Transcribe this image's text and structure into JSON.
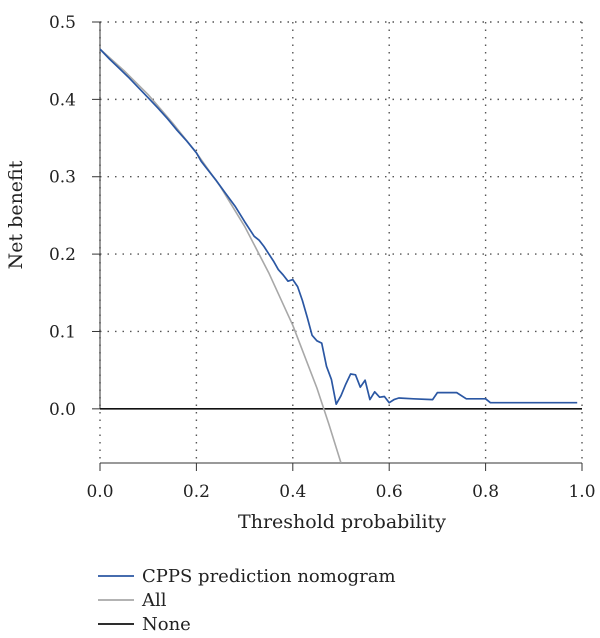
{
  "chart_data": {
    "type": "line",
    "title": "",
    "xlabel": "Threshold probability",
    "ylabel": "Net benefit",
    "xlim": [
      0,
      1
    ],
    "ylim": [
      -0.07,
      0.5
    ],
    "x_ticks": [
      0.0,
      0.2,
      0.4,
      0.6,
      0.8,
      1.0
    ],
    "x_tick_labels": [
      "0.0",
      "0.2",
      "0.4",
      "0.6",
      "0.8",
      "1.0"
    ],
    "y_ticks": [
      0.0,
      0.1,
      0.2,
      0.3,
      0.4,
      0.5
    ],
    "y_tick_labels": [
      "0.0",
      "0.1",
      "0.2",
      "0.3",
      "0.4",
      "0.5"
    ],
    "grid": true,
    "legend_position": "bottom-left",
    "series": [
      {
        "name": "CPPS prediction nomogram",
        "color": "#2b57a3",
        "x": [
          0.0,
          0.02,
          0.04,
          0.06,
          0.08,
          0.1,
          0.12,
          0.14,
          0.16,
          0.18,
          0.2,
          0.21,
          0.22,
          0.24,
          0.26,
          0.28,
          0.3,
          0.32,
          0.33,
          0.34,
          0.36,
          0.37,
          0.38,
          0.39,
          0.4,
          0.41,
          0.42,
          0.43,
          0.44,
          0.45,
          0.46,
          0.47,
          0.48,
          0.49,
          0.5,
          0.51,
          0.52,
          0.53,
          0.54,
          0.55,
          0.56,
          0.57,
          0.58,
          0.59,
          0.6,
          0.61,
          0.62,
          0.65,
          0.69,
          0.7,
          0.74,
          0.76,
          0.8,
          0.81,
          0.85,
          0.9,
          0.99
        ],
        "y": [
          0.465,
          0.452,
          0.44,
          0.428,
          0.415,
          0.402,
          0.389,
          0.375,
          0.36,
          0.346,
          0.331,
          0.32,
          0.312,
          0.296,
          0.279,
          0.262,
          0.242,
          0.223,
          0.218,
          0.21,
          0.191,
          0.18,
          0.173,
          0.165,
          0.167,
          0.158,
          0.14,
          0.118,
          0.095,
          0.088,
          0.085,
          0.055,
          0.038,
          0.006,
          0.017,
          0.032,
          0.045,
          0.044,
          0.028,
          0.037,
          0.012,
          0.022,
          0.015,
          0.016,
          0.008,
          0.012,
          0.014,
          0.013,
          0.012,
          0.021,
          0.021,
          0.013,
          0.013,
          0.008,
          0.008,
          0.008,
          0.008
        ]
      },
      {
        "name": "All",
        "color": "#a8a8a8",
        "x": [
          0.0,
          0.05,
          0.1,
          0.15,
          0.2,
          0.25,
          0.3,
          0.35,
          0.4,
          0.45,
          0.475,
          0.5
        ],
        "y": [
          0.465,
          0.437,
          0.406,
          0.37,
          0.331,
          0.287,
          0.236,
          0.176,
          0.108,
          0.027,
          -0.02,
          -0.07
        ]
      },
      {
        "name": "None",
        "color": "#111111",
        "x": [
          0.0,
          1.0
        ],
        "y": [
          0.0,
          0.0
        ]
      }
    ]
  }
}
